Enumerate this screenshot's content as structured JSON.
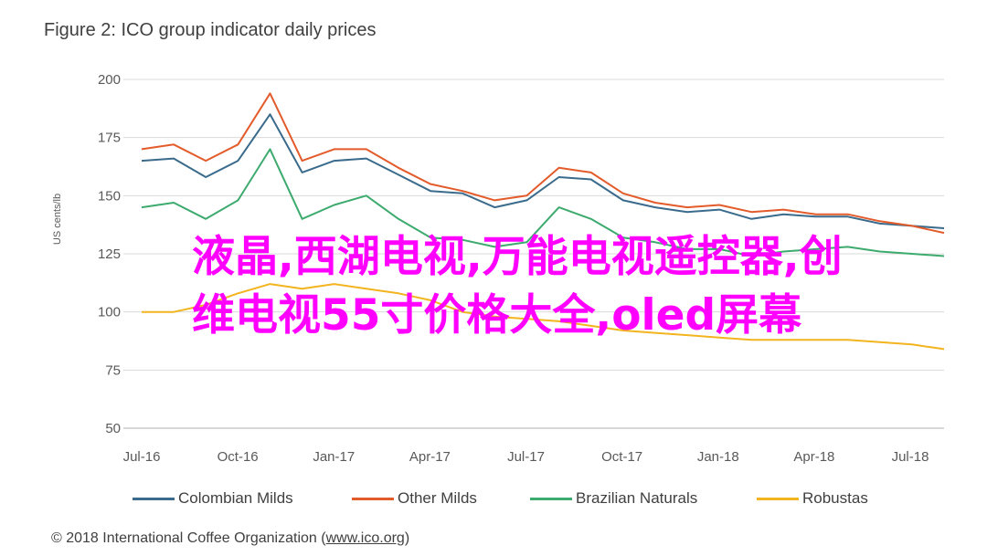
{
  "figure_title": "Figure 2: ICO group indicator daily prices",
  "overlay": {
    "line1": "液晶,西湖电视,万能电视遥控器,创",
    "line2": "维电视55寸价格大全,oled屏幕"
  },
  "copyright": {
    "prefix": "© 2018 International Coffee Organization (",
    "link": "www.ico.org",
    "suffix": ")"
  },
  "chart_data": {
    "type": "line",
    "title": "Figure 2: ICO group indicator daily prices",
    "xlabel": "",
    "ylabel": "US cents/lb",
    "ylim": [
      50,
      200
    ],
    "yticks": [
      "50",
      "75",
      "100",
      "125",
      "150",
      "175",
      "200"
    ],
    "xlim": [
      "2016-07-01",
      "2018-08-01"
    ],
    "xticks": [
      "Jul-16",
      "Oct-16",
      "Jan-17",
      "Apr-17",
      "Jul-17",
      "Oct-17",
      "Jan-18",
      "Apr-18",
      "Jul-18"
    ],
    "grid": true,
    "legend_position": "bottom",
    "x": [
      "Jul-16",
      "Aug-16",
      "Sep-16",
      "Oct-16",
      "Nov-16",
      "Dec-16",
      "Jan-17",
      "Feb-17",
      "Mar-17",
      "Apr-17",
      "May-17",
      "Jun-17",
      "Jul-17",
      "Aug-17",
      "Sep-17",
      "Oct-17",
      "Nov-17",
      "Dec-17",
      "Jan-18",
      "Feb-18",
      "Mar-18",
      "Apr-18",
      "May-18",
      "Jun-18",
      "Jul-18",
      "Aug-18"
    ],
    "series": [
      {
        "name": "Colombian Milds",
        "color": "#3a6b8c",
        "values": [
          165,
          166,
          158,
          165,
          185,
          160,
          165,
          166,
          159,
          152,
          151,
          145,
          148,
          158,
          157,
          148,
          145,
          143,
          144,
          140,
          142,
          141,
          141,
          138,
          137,
          136
        ]
      },
      {
        "name": "Other Milds",
        "color": "#e35b2b",
        "values": [
          170,
          172,
          165,
          172,
          194,
          165,
          170,
          170,
          162,
          155,
          152,
          148,
          150,
          162,
          160,
          151,
          147,
          145,
          146,
          143,
          144,
          142,
          142,
          139,
          137,
          134
        ]
      },
      {
        "name": "Brazilian Naturals",
        "color": "#3daa6e",
        "values": [
          145,
          147,
          140,
          148,
          170,
          140,
          146,
          150,
          140,
          132,
          131,
          128,
          130,
          145,
          140,
          132,
          130,
          127,
          127,
          124,
          126,
          127,
          128,
          126,
          125,
          124
        ]
      },
      {
        "name": "Robustas",
        "color": "#f2b41f",
        "values": [
          100,
          100,
          103,
          108,
          112,
          110,
          112,
          110,
          108,
          105,
          100,
          98,
          97,
          96,
          94,
          92,
          91,
          90,
          89,
          88,
          88,
          88,
          88,
          87,
          86,
          84
        ]
      }
    ]
  }
}
